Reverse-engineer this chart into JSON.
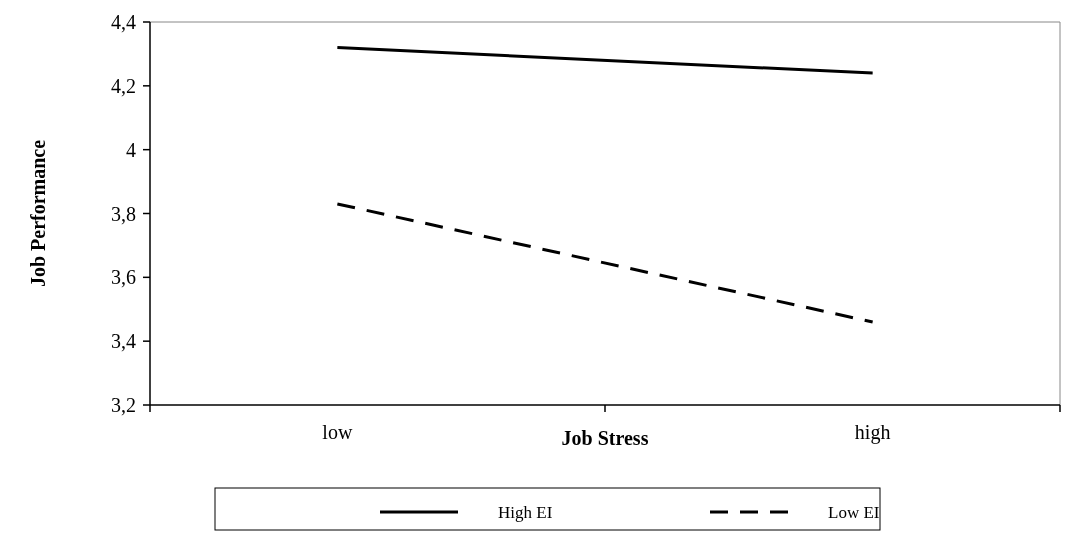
{
  "chart_data": {
    "type": "line",
    "xlabel": "Job Stress",
    "ylabel": "Job Performance",
    "categories": [
      "low",
      "high"
    ],
    "series": [
      {
        "name": "High EI",
        "color": "#000000",
        "values": [
          4.32,
          4.24
        ],
        "line_style": "solid"
      },
      {
        "name": "Low EI",
        "color": "#000000",
        "values": [
          3.83,
          3.46
        ],
        "line_style": "dashed"
      }
    ],
    "ylim": [
      3.2,
      4.4
    ],
    "yticks": [
      {
        "value": 3.2,
        "label": "3,2"
      },
      {
        "value": 3.4,
        "label": "3,4"
      },
      {
        "value": 3.6,
        "label": "3,6"
      },
      {
        "value": 3.8,
        "label": "3,8"
      },
      {
        "value": 4,
        "label": "4"
      },
      {
        "value": 4.2,
        "label": "4,2"
      },
      {
        "value": 4.4,
        "label": "4,4"
      }
    ],
    "grid": false,
    "legend": "bottom",
    "marker": "none"
  }
}
